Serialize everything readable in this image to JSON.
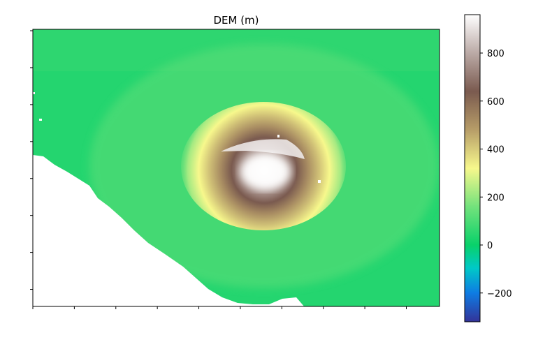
{
  "chart_data": {
    "type": "heatmap",
    "title": "DEM (m)",
    "xlabel": "",
    "ylabel": "",
    "colormap": "terrain",
    "colorbar": {
      "range": [
        -320,
        960
      ],
      "ticks": [
        -200,
        0,
        200,
        400,
        600,
        800
      ],
      "tick_labels": [
        "−200",
        "0",
        "200",
        "400",
        "600",
        "800"
      ],
      "colors": [
        {
          "value": -320,
          "color": "#333399"
        },
        {
          "value": -200,
          "color": "#0e7ce3"
        },
        {
          "value": -96,
          "color": "#00c9c7"
        },
        {
          "value": 0,
          "color": "#09d16a"
        },
        {
          "value": 160,
          "color": "#73e27c"
        },
        {
          "value": 320,
          "color": "#f7f88c"
        },
        {
          "value": 480,
          "color": "#b79d68"
        },
        {
          "value": 640,
          "color": "#7a5a4f"
        },
        {
          "value": 800,
          "color": "#bbaaa6"
        },
        {
          "value": 960,
          "color": "#ffffff"
        }
      ]
    },
    "x_ticks_count": 10,
    "y_ticks_count": 8,
    "ocean_color": "#ffffff",
    "summit_max_m": 960,
    "coastal_min_m": 40
  }
}
